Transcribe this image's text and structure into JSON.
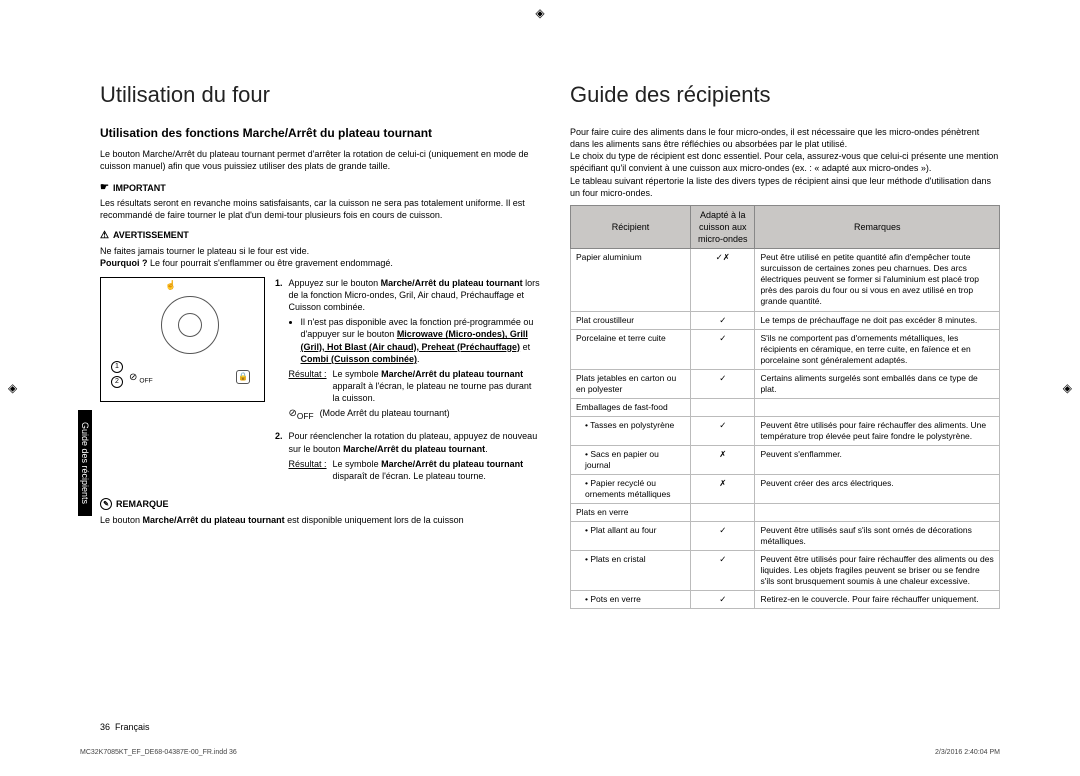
{
  "sidebar_tab": "Guide des récipients",
  "left": {
    "title": "Utilisation du four",
    "subtitle": "Utilisation des fonctions Marche/Arrêt du plateau tournant",
    "intro": "Le bouton Marche/Arrêt du plateau tournant permet d'arrêter la rotation de celui-ci (uniquement en mode de cuisson manuel) afin que vous puissiez utiliser des plats de grande taille.",
    "important_label": "IMPORTANT",
    "important_body": "Les résultats seront en revanche moins satisfaisants, car la cuisson ne sera pas totalement uniforme. Il est recommandé de faire tourner le plat d'un demi-tour plusieurs fois en cours de cuisson.",
    "warn_label": "AVERTISSEMENT",
    "warn_line1": "Ne faites jamais tourner le plateau si le four est vide.",
    "warn_line2_pre": "Pourquoi ? ",
    "warn_line2_body": "Le four pourrait s'enflammer ou être gravement endommagé.",
    "diagram": {
      "off_label": "OFF"
    },
    "step1_num": "1.",
    "step1_a": "Appuyez sur le bouton ",
    "step1_b": "Marche/Arrêt du plateau tournant",
    "step1_c": " lors de la fonction Micro-ondes, Gril, Air chaud, Préchauffage et Cuisson combinée.",
    "step1_sub1_a": "Il n'est pas disponible avec la fonction pré-programmée ou d'appuyer sur le bouton ",
    "step1_sub1_b": "Microwave (Micro-ondes), Grill (Gril), Hot Blast (Air chaud), Preheat (Préchauffage)",
    "step1_sub1_c": " et ",
    "step1_sub1_d": "Combi (Cuisson combinée)",
    "step1_sub1_e": ".",
    "step1_res_lbl": "Résultat :",
    "step1_res_a": "Le symbole ",
    "step1_res_b": "Marche/Arrêt du plateau tournant",
    "step1_res_c": " apparaît à l'écran, le plateau ne tourne pas durant la cuisson.",
    "step1_mode": "(Mode Arrêt du plateau tournant)",
    "step2_num": "2.",
    "step2_a": "Pour réenclencher la rotation du plateau, appuyez de nouveau sur le bouton ",
    "step2_b": "Marche/Arrêt du plateau tournant",
    "step2_c": ".",
    "step2_res_lbl": "Résultat :",
    "step2_res_a": "Le symbole ",
    "step2_res_b": "Marche/Arrêt du plateau tournant",
    "step2_res_c": " disparaît de l'écran. Le plateau tourne.",
    "note_label": "REMARQUE",
    "note_body_a": "Le bouton ",
    "note_body_b": "Marche/Arrêt du plateau tournant",
    "note_body_c": " est disponible uniquement lors de la cuisson"
  },
  "right": {
    "title": "Guide des récipients",
    "p1": "Pour faire cuire des aliments dans le four micro-ondes, il est nécessaire que les micro-ondes pénètrent dans les aliments sans être réfléchies ou absorbées par le plat utilisé.",
    "p2": "Le choix du type de récipient est donc essentiel. Pour cela, assurez-vous que celui-ci présente une mention spécifiant qu'il convient à une cuisson aux micro-ondes (ex. : « adapté aux micro-ondes »).",
    "p3": "Le tableau suivant répertorie la liste des divers types de récipient ainsi que leur méthode d'utilisation dans un four micro-ondes.",
    "th1": "Récipient",
    "th2": "Adapté à la cuisson aux micro-ondes",
    "th3": "Remarques",
    "rows": [
      {
        "r": "Papier aluminium",
        "s": "✓✗",
        "n": "Peut être utilisé en petite quantité afin d'empêcher toute surcuisson de certaines zones peu charnues. Des arcs électriques peuvent se former si l'aluminium est placé trop près des parois du four ou si vous en avez utilisé en trop grande quantité."
      },
      {
        "r": "Plat croustilleur",
        "s": "✓",
        "n": "Le temps de préchauffage ne doit pas excéder 8 minutes."
      },
      {
        "r": "Porcelaine et terre cuite",
        "s": "✓",
        "n": "S'ils ne comportent pas d'ornements métalliques, les récipients en céramique, en terre cuite, en faïence et en porcelaine sont généralement adaptés."
      },
      {
        "r": "Plats jetables en carton ou en polyester",
        "s": "✓",
        "n": "Certains aliments surgelés sont emballés dans ce type de plat."
      },
      {
        "r": "Emballages de fast-food",
        "s": "",
        "n": ""
      },
      {
        "r": "• Tasses en polystyrène",
        "sub": true,
        "s": "✓",
        "n": "Peuvent être utilisés pour faire réchauffer des aliments. Une température trop élevée peut faire fondre le polystyrène."
      },
      {
        "r": "• Sacs en papier ou journal",
        "sub": true,
        "s": "✗",
        "n": "Peuvent s'enflammer."
      },
      {
        "r": "• Papier recyclé ou ornements métalliques",
        "sub": true,
        "s": "✗",
        "n": "Peuvent créer des arcs électriques."
      },
      {
        "r": "Plats en verre",
        "s": "",
        "n": ""
      },
      {
        "r": "• Plat allant au four",
        "sub": true,
        "s": "✓",
        "n": "Peuvent être utilisés sauf s'ils sont ornés de décorations métalliques."
      },
      {
        "r": "• Plats en cristal",
        "sub": true,
        "s": "✓",
        "n": "Peuvent être utilisés pour faire réchauffer des aliments ou des liquides. Les objets fragiles peuvent se briser ou se fendre s'ils sont brusquement soumis à une chaleur excessive."
      },
      {
        "r": "• Pots en verre",
        "sub": true,
        "s": "✓",
        "n": "Retirez-en le couvercle. Pour faire réchauffer uniquement."
      }
    ]
  },
  "footer": {
    "page": "36",
    "lang": "Français"
  },
  "print": {
    "left": "MC32K7085KT_EF_DE68-04387E-00_FR.indd   36",
    "right": "2/3/2016   2:40:04 PM"
  }
}
